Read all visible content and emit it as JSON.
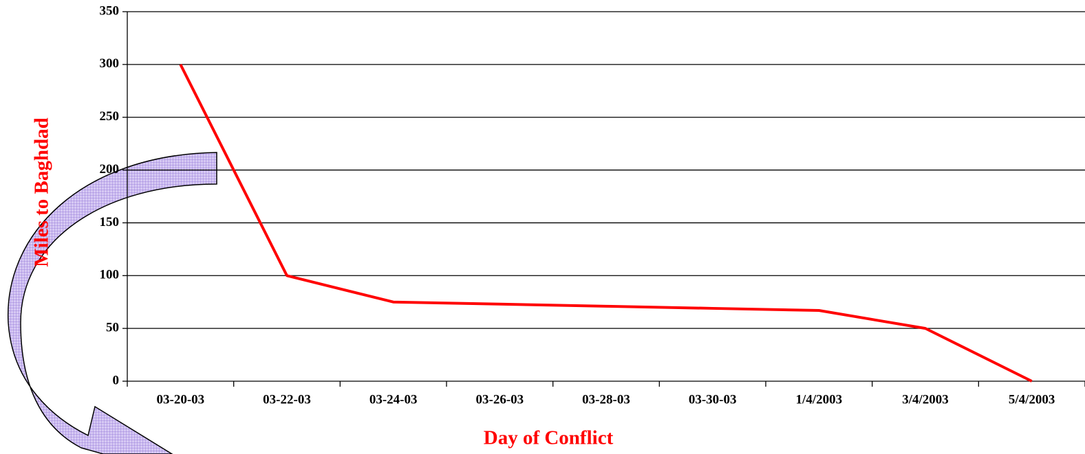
{
  "chart_data": {
    "type": "line",
    "x_label": "Day of Conflict",
    "y_label": "Miles to Baghdad",
    "categories": [
      "03-20-03",
      "03-22-03",
      "03-24-03",
      "03-26-03",
      "03-28-03",
      "03-30-03",
      "1/4/2003",
      "3/4/2003",
      "5/4/2003"
    ],
    "series": [
      {
        "color": "#ff0000",
        "values": [
          300,
          100,
          75,
          73,
          71,
          69,
          67,
          50,
          0
        ]
      }
    ],
    "ylim": [
      0,
      350
    ],
    "yticks": [
      0,
      50,
      100,
      150,
      200,
      250,
      300,
      350
    ],
    "grid": true
  }
}
